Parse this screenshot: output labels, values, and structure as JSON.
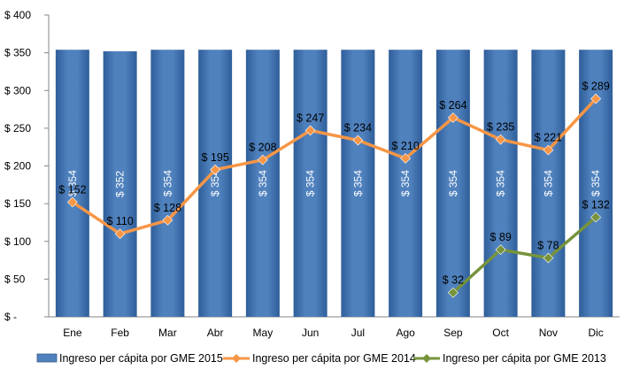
{
  "chart_data": {
    "type": "bar",
    "title": "",
    "xlabel": "",
    "ylabel": "",
    "categories": [
      "Ene",
      "Feb",
      "Mar",
      "Abr",
      "May",
      "Jun",
      "Jul",
      "Ago",
      "Sep",
      "Oct",
      "Nov",
      "Dic"
    ],
    "ylim": [
      0,
      400
    ],
    "yticks": [
      0,
      50,
      100,
      150,
      200,
      250,
      300,
      350,
      400
    ],
    "ytick_labels": [
      "$ -",
      "$ 50",
      "$ 100",
      "$ 150",
      "$ 200",
      "$ 250",
      "$ 300",
      "$ 350",
      "$ 400"
    ],
    "grid": false,
    "legend_position": "bottom",
    "series": [
      {
        "name": "Ingreso per cápita por GME 2015",
        "type": "bar",
        "color": "#4f81bd",
        "values": [
          354,
          352,
          354,
          354,
          354,
          354,
          354,
          354,
          354,
          354,
          354,
          354
        ],
        "labels": [
          "$ 354",
          "$ 352",
          "$ 354",
          "$ 354",
          "$ 354",
          "$ 354",
          "$ 354",
          "$ 354",
          "$ 354",
          "$ 354",
          "$ 354",
          "$ 354"
        ]
      },
      {
        "name": "Ingreso per cápita por GME 2014",
        "type": "line",
        "color": "#f79646",
        "values": [
          152,
          110,
          128,
          195,
          208,
          247,
          234,
          210,
          264,
          235,
          221,
          289
        ],
        "labels": [
          "$ 152",
          "$ 110",
          "$ 128",
          "$ 195",
          "$ 208",
          "$ 247",
          "$ 234",
          "$ 210",
          "$ 264",
          "$ 235",
          "$ 221",
          "$ 289"
        ]
      },
      {
        "name": "Ingreso per cápita por GME 2013",
        "type": "line",
        "color": "#77933c",
        "values": [
          null,
          null,
          null,
          null,
          null,
          null,
          null,
          null,
          32,
          89,
          78,
          132
        ],
        "labels": [
          null,
          null,
          null,
          null,
          null,
          null,
          null,
          null,
          "$ 32",
          "$ 89",
          "$ 78",
          "$ 132"
        ]
      }
    ]
  }
}
